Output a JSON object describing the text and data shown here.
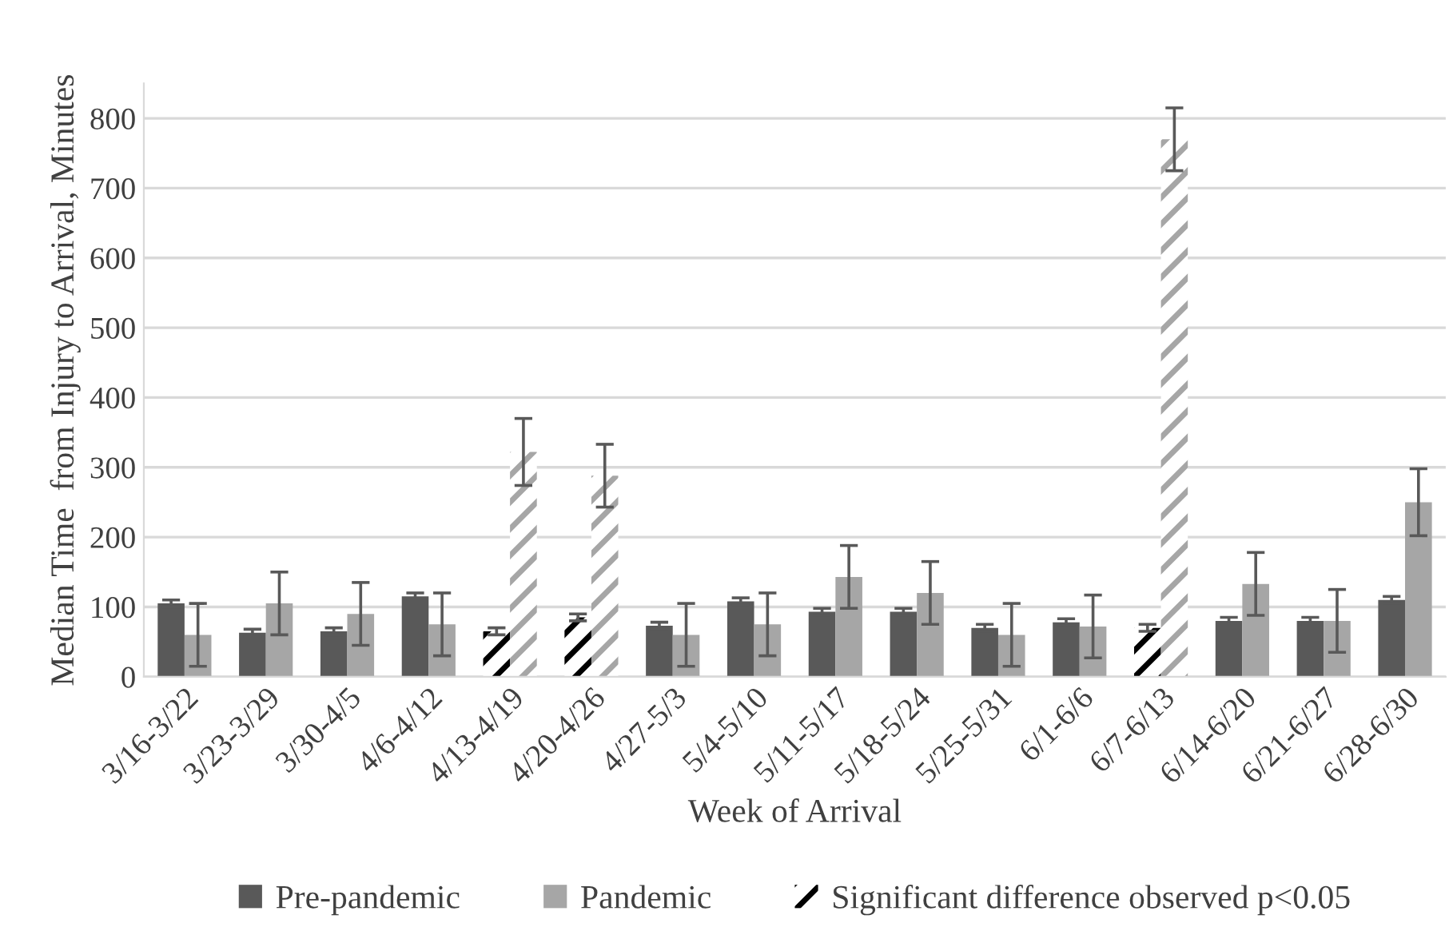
{
  "chart_data": {
    "type": "bar",
    "xlabel": "Week of Arrival",
    "ylabel": "Median Time  from Injury to Arrival, Minutes",
    "categories": [
      "3/16-3/22",
      "3/23-3/29",
      "3/30-4/5",
      "4/6-4/12",
      "4/13-4/19",
      "4/20-4/26",
      "4/27-5/3",
      "5/4-5/10",
      "5/11-5/17",
      "5/18-5/24",
      "5/25-5/31",
      "6/1-6/6",
      "6/7-6/13",
      "6/14-6/20",
      "6/21-6/27",
      "6/28-6/30"
    ],
    "series": [
      {
        "name": "Pre-pandemic",
        "color": "#595959",
        "values": [
          105,
          63,
          65,
          115,
          null,
          null,
          73,
          108,
          93,
          93,
          70,
          78,
          null,
          80,
          80,
          110
        ],
        "errors": [
          5,
          5,
          5,
          5,
          null,
          null,
          5,
          5,
          5,
          5,
          5,
          5,
          null,
          5,
          5,
          5
        ]
      },
      {
        "name": "Pandemic",
        "color": "#a6a6a6",
        "values": [
          60,
          105,
          90,
          75,
          null,
          null,
          60,
          75,
          143,
          120,
          60,
          72,
          null,
          133,
          80,
          250
        ],
        "errors": [
          45,
          45,
          45,
          45,
          null,
          null,
          45,
          45,
          45,
          45,
          45,
          45,
          null,
          45,
          45,
          48
        ]
      },
      {
        "name": "Significant difference observed p<0.05",
        "color": "#000000",
        "line_style": "dashed",
        "values": [
          null,
          null,
          null,
          null,
          65,
          85,
          null,
          null,
          null,
          null,
          null,
          null,
          70,
          null,
          null,
          null
        ],
        "errors": [
          null,
          null,
          null,
          null,
          5,
          5,
          null,
          null,
          null,
          null,
          null,
          null,
          5,
          null,
          null,
          null
        ]
      },
      {
        "color": "#a6a6a6",
        "line_style": "dashed",
        "values": [
          null,
          null,
          null,
          null,
          322,
          288,
          null,
          null,
          null,
          null,
          null,
          null,
          770,
          null,
          null,
          null
        ],
        "errors": [
          null,
          null,
          null,
          null,
          48,
          45,
          null,
          null,
          null,
          null,
          null,
          null,
          45,
          null,
          null,
          null
        ]
      }
    ],
    "ylim": [
      0,
      850
    ],
    "yticks": [
      0,
      100,
      200,
      300,
      400,
      500,
      600,
      700,
      800
    ],
    "grid": "y",
    "legend": "bottom"
  }
}
